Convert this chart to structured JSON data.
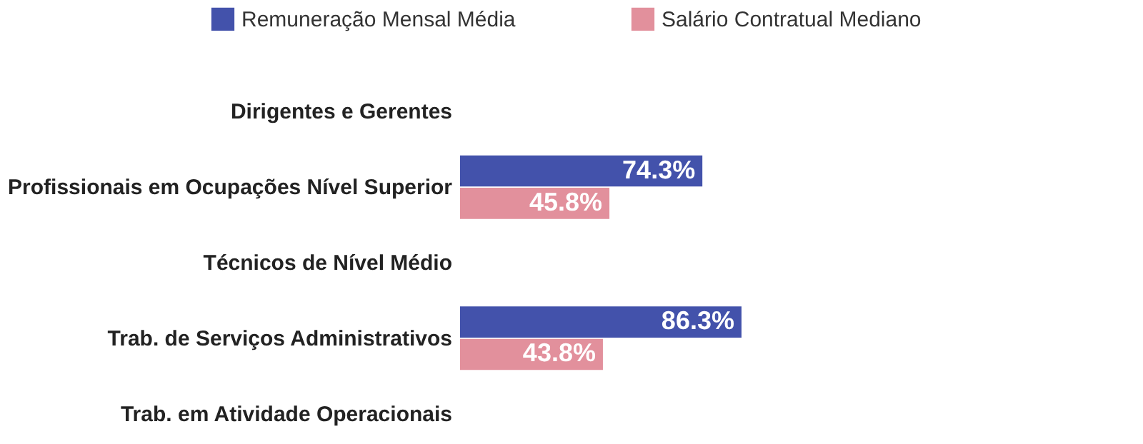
{
  "chart_data": {
    "type": "bar",
    "orientation": "horizontal",
    "legend": "top",
    "categories": [
      "Dirigentes e Gerentes",
      "Profissionais em Ocupações Nível Superior",
      "Técnicos de Nível Médio",
      "Trab. de Serviços Administrativos",
      "Trab. em Atividade Operacionais"
    ],
    "series": [
      {
        "name": "Remuneração Mensal Média",
        "color": "#4352ab",
        "values": [
          null,
          74.3,
          null,
          86.3,
          null
        ],
        "value_labels": [
          null,
          "74.3%",
          null,
          "86.3%",
          null
        ]
      },
      {
        "name": "Salário Contratual Mediano",
        "color": "#e2909c",
        "values": [
          null,
          45.8,
          null,
          43.8,
          null
        ],
        "value_labels": [
          null,
          "45.8%",
          null,
          "43.8%",
          null
        ]
      }
    ]
  }
}
